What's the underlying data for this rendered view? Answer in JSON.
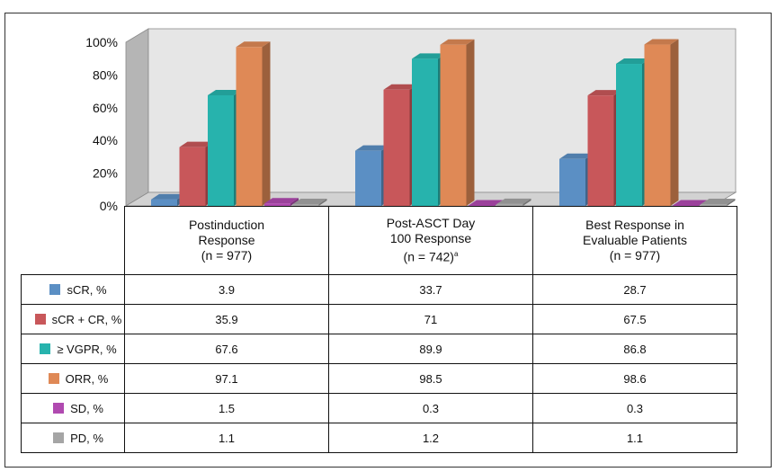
{
  "chart_data": {
    "type": "bar",
    "title": "",
    "xlabel": "",
    "ylabel": "",
    "ylim": [
      0,
      100
    ],
    "yticks": [
      "0%",
      "20%",
      "40%",
      "60%",
      "80%",
      "100%"
    ],
    "categories": [
      {
        "lines": [
          "Postinduction",
          "Response",
          "(n = 977)"
        ],
        "sup": ""
      },
      {
        "lines": [
          "Post-ASCT Day",
          "100 Response",
          "(n = 742)"
        ],
        "sup": "a"
      },
      {
        "lines": [
          "Best Response in",
          "Evaluable Patients",
          "(n = 977)"
        ],
        "sup": ""
      }
    ],
    "series": [
      {
        "name": "sCR, %",
        "color": "#5b8fc4",
        "values": [
          3.9,
          33.7,
          28.7
        ],
        "labels": [
          "3.9",
          "33.7",
          "28.7"
        ]
      },
      {
        "name": "sCR + CR, %",
        "color": "#c8575a",
        "values": [
          35.9,
          71,
          67.5
        ],
        "labels": [
          "35.9",
          "71",
          "67.5"
        ]
      },
      {
        "name": "≥ VGPR, %",
        "color": "#27b3ad",
        "values": [
          67.6,
          89.9,
          86.8
        ],
        "labels": [
          "67.6",
          "89.9",
          "86.8"
        ]
      },
      {
        "name": "ORR, %",
        "color": "#df8956",
        "values": [
          97.1,
          98.5,
          98.6
        ],
        "labels": [
          "97.1",
          "98.5",
          "98.6"
        ]
      },
      {
        "name": "SD, %",
        "color": "#b04ab0",
        "values": [
          1.5,
          0.3,
          0.3
        ],
        "labels": [
          "1.5",
          "0.3",
          "0.3"
        ]
      },
      {
        "name": "PD, %",
        "color": "#a5a5a5",
        "values": [
          1.1,
          1.2,
          1.1
        ],
        "labels": [
          "1.1",
          "1.2",
          "1.1"
        ]
      }
    ],
    "grid": false,
    "legend": "table-left"
  }
}
